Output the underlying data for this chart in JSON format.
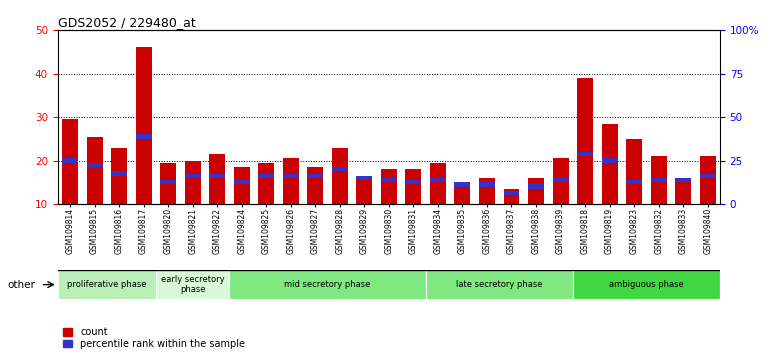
{
  "title": "GDS2052 / 229480_at",
  "samples": [
    "GSM109814",
    "GSM109815",
    "GSM109816",
    "GSM109817",
    "GSM109820",
    "GSM109821",
    "GSM109822",
    "GSM109824",
    "GSM109825",
    "GSM109826",
    "GSM109827",
    "GSM109828",
    "GSM109829",
    "GSM109830",
    "GSM109831",
    "GSM109834",
    "GSM109835",
    "GSM109836",
    "GSM109837",
    "GSM109838",
    "GSM109839",
    "GSM109818",
    "GSM109819",
    "GSM109823",
    "GSM109832",
    "GSM109833",
    "GSM109840"
  ],
  "count_values": [
    29.5,
    25.5,
    23.0,
    46.0,
    19.5,
    20.0,
    21.5,
    18.5,
    19.5,
    20.5,
    18.5,
    23.0,
    16.0,
    18.0,
    18.0,
    19.5,
    15.0,
    16.0,
    13.5,
    16.0,
    20.5,
    39.0,
    28.5,
    25.0,
    21.0,
    16.0,
    21.0
  ],
  "percentile_values": [
    20.0,
    19.0,
    17.0,
    25.5,
    15.0,
    16.5,
    16.5,
    15.0,
    16.5,
    16.5,
    16.5,
    18.0,
    16.0,
    15.5,
    15.0,
    15.5,
    14.5,
    14.5,
    12.5,
    14.0,
    15.5,
    21.5,
    20.0,
    15.0,
    15.5,
    15.5,
    16.5
  ],
  "phases": [
    {
      "label": "proliferative phase",
      "start": 0,
      "end": 4,
      "color": "#b8f0b8"
    },
    {
      "label": "early secretory\nphase",
      "start": 4,
      "end": 7,
      "color": "#d8f8d8"
    },
    {
      "label": "mid secretory phase",
      "start": 7,
      "end": 15,
      "color": "#80e880"
    },
    {
      "label": "late secretory phase",
      "start": 15,
      "end": 21,
      "color": "#80e880"
    },
    {
      "label": "ambiguous phase",
      "start": 21,
      "end": 27,
      "color": "#40d840"
    }
  ],
  "bar_color_red": "#cc0000",
  "bar_color_blue": "#3333cc",
  "ylim_left": [
    10,
    50
  ],
  "ylim_right": [
    0,
    100
  ],
  "yticks_left": [
    10,
    20,
    30,
    40,
    50
  ],
  "ytick_labels_right": [
    "0",
    "25",
    "50",
    "75",
    "100%"
  ],
  "background_color": "#ffffff",
  "plot_bg_color": "#ffffff",
  "tick_label_bg": "#d8d8d8"
}
